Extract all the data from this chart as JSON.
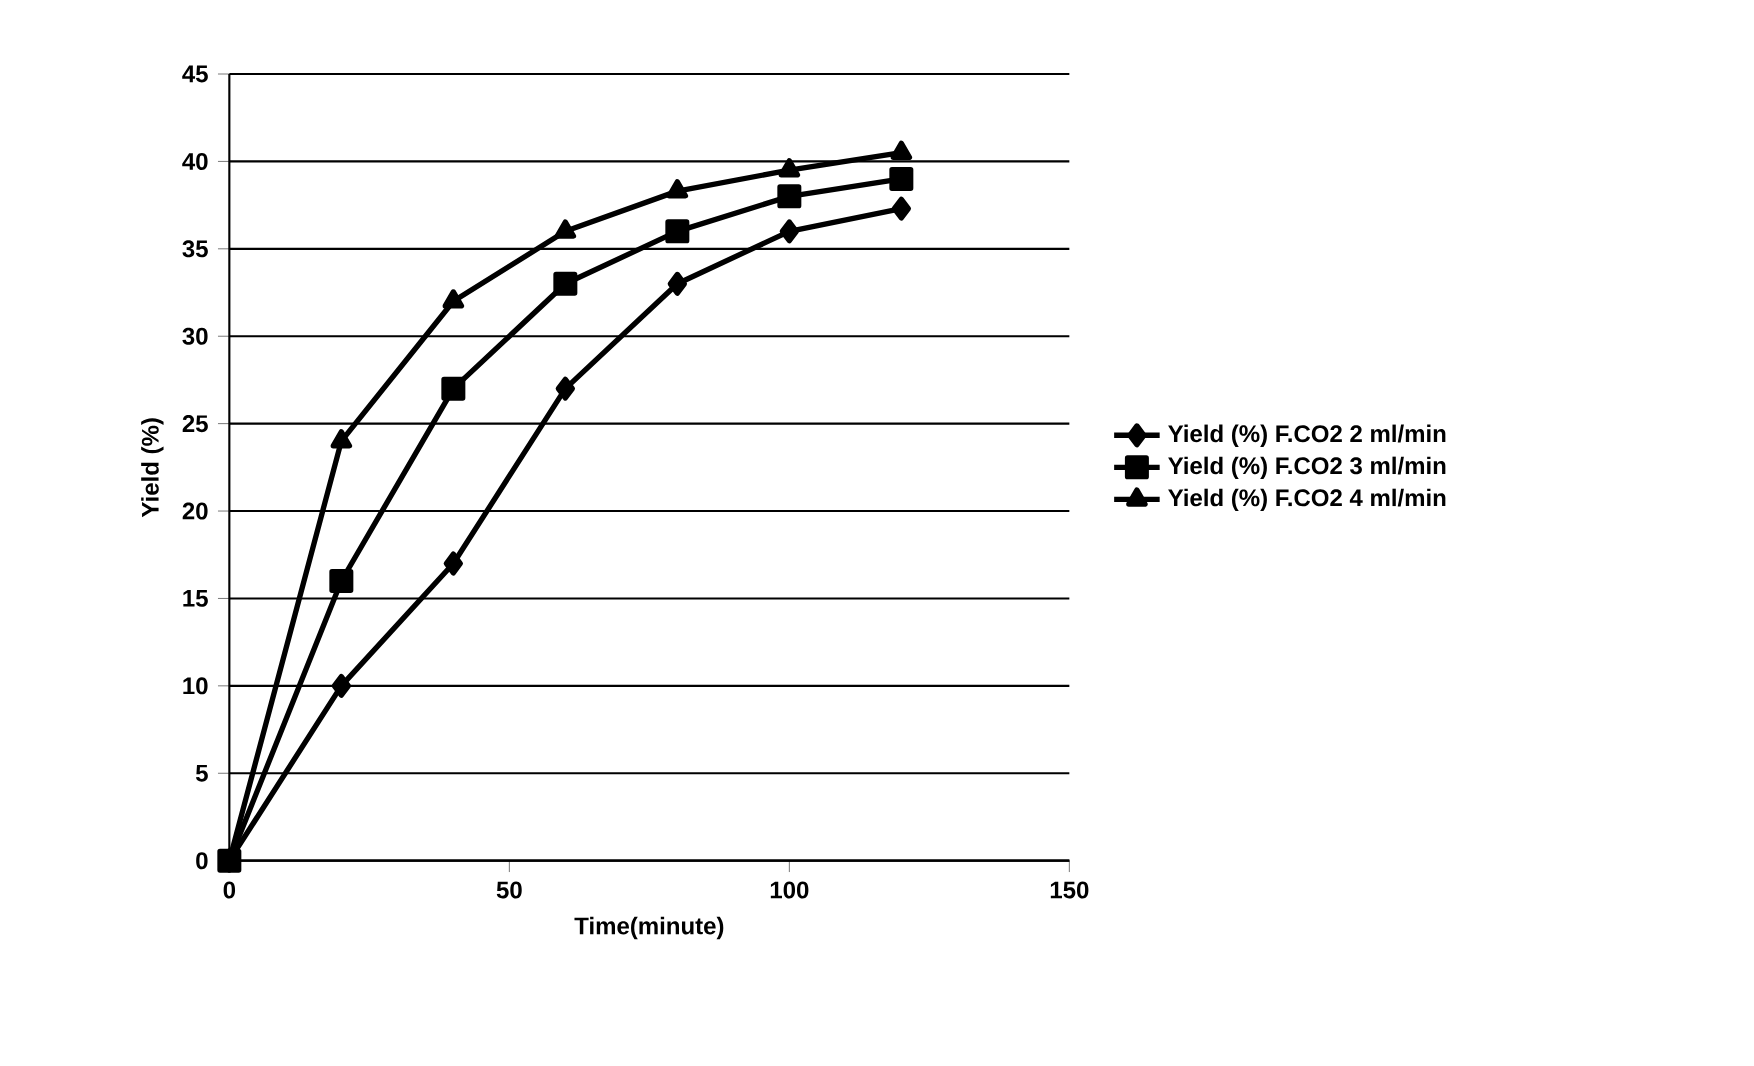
{
  "chart_data": {
    "type": "line",
    "xlabel": "Time(minute)",
    "ylabel": "Yield (%)",
    "x": [
      0,
      20,
      40,
      60,
      80,
      100,
      120
    ],
    "series": [
      {
        "name": "Yield (%) F.CO2 2 ml/min",
        "color": "#000000",
        "marker": "diamond",
        "values": [
          0,
          10,
          17,
          27,
          33,
          36,
          37.3
        ]
      },
      {
        "name": "Yield (%) F.CO2 3 ml/min",
        "color": "#000000",
        "marker": "square",
        "values": [
          0,
          16,
          27,
          33,
          36,
          38,
          39
        ]
      },
      {
        "name": "Yield (%) F.CO2 4 ml/min",
        "color": "#000000",
        "marker": "triangle",
        "values": [
          0,
          24,
          32,
          36,
          38.3,
          39.5,
          40.5
        ]
      }
    ],
    "xlim": [
      0,
      150
    ],
    "xticks": [
      0,
      50,
      100,
      150
    ],
    "ylim": [
      0,
      45
    ],
    "yticks": [
      0,
      5,
      10,
      15,
      20,
      25,
      30,
      35,
      40,
      45
    ],
    "grid": "y",
    "legend": "right",
    "line_style": "solid"
  }
}
